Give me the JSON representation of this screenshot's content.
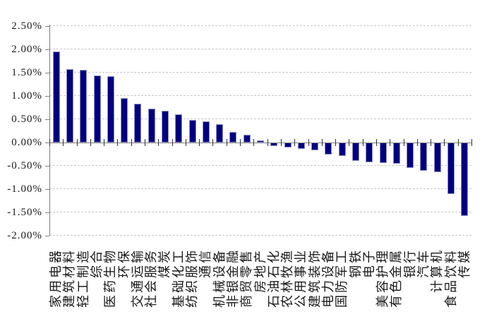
{
  "chart_data": {
    "type": "bar",
    "title": "",
    "xlabel": "",
    "ylabel": "",
    "categories": [
      "家用电器",
      "建筑材料",
      "轻工制造",
      "综合",
      "医药生物",
      "环保",
      "交通运输",
      "社会服务",
      "煤炭",
      "基础化工",
      "纺织服饰",
      "通信",
      "机械设备",
      "非银金融",
      "商贸零售",
      "房地产",
      "石油石化",
      "农林牧渔",
      "公用事业",
      "建筑装饰",
      "电力设备",
      "国防军工",
      "钢铁",
      "电子",
      "美容护理",
      "有色金属",
      "银行",
      "汽车",
      "计算机",
      "食品饮料",
      "传媒"
    ],
    "values": [
      1.96,
      1.58,
      1.56,
      1.44,
      1.42,
      0.95,
      0.83,
      0.73,
      0.68,
      0.61,
      0.49,
      0.45,
      0.39,
      0.23,
      0.16,
      0.05,
      -0.08,
      -0.11,
      -0.13,
      -0.17,
      -0.25,
      -0.29,
      -0.39,
      -0.43,
      -0.44,
      -0.46,
      -0.55,
      -0.61,
      -0.64,
      -1.11,
      -1.57
    ],
    "value_unit": "%",
    "ylim": [
      -2.0,
      2.5
    ],
    "ytick_step": 0.5,
    "ytick_labels": [
      "2.50%",
      "2.00%",
      "1.50%",
      "1.00%",
      "0.50%",
      "0.00%",
      "-0.50%",
      "-1.00%",
      "-1.50%",
      "-2.00%"
    ],
    "legend": "none",
    "grid": "horizontal-dashed",
    "colors": {
      "bar_fill": "#000080",
      "bar_border": "#8f8fc8",
      "gridline": "#c8c8c8",
      "axis": "#7f7f7f",
      "tick": "#333333",
      "text": "#1a1a1a",
      "background": "#ffffff"
    }
  }
}
